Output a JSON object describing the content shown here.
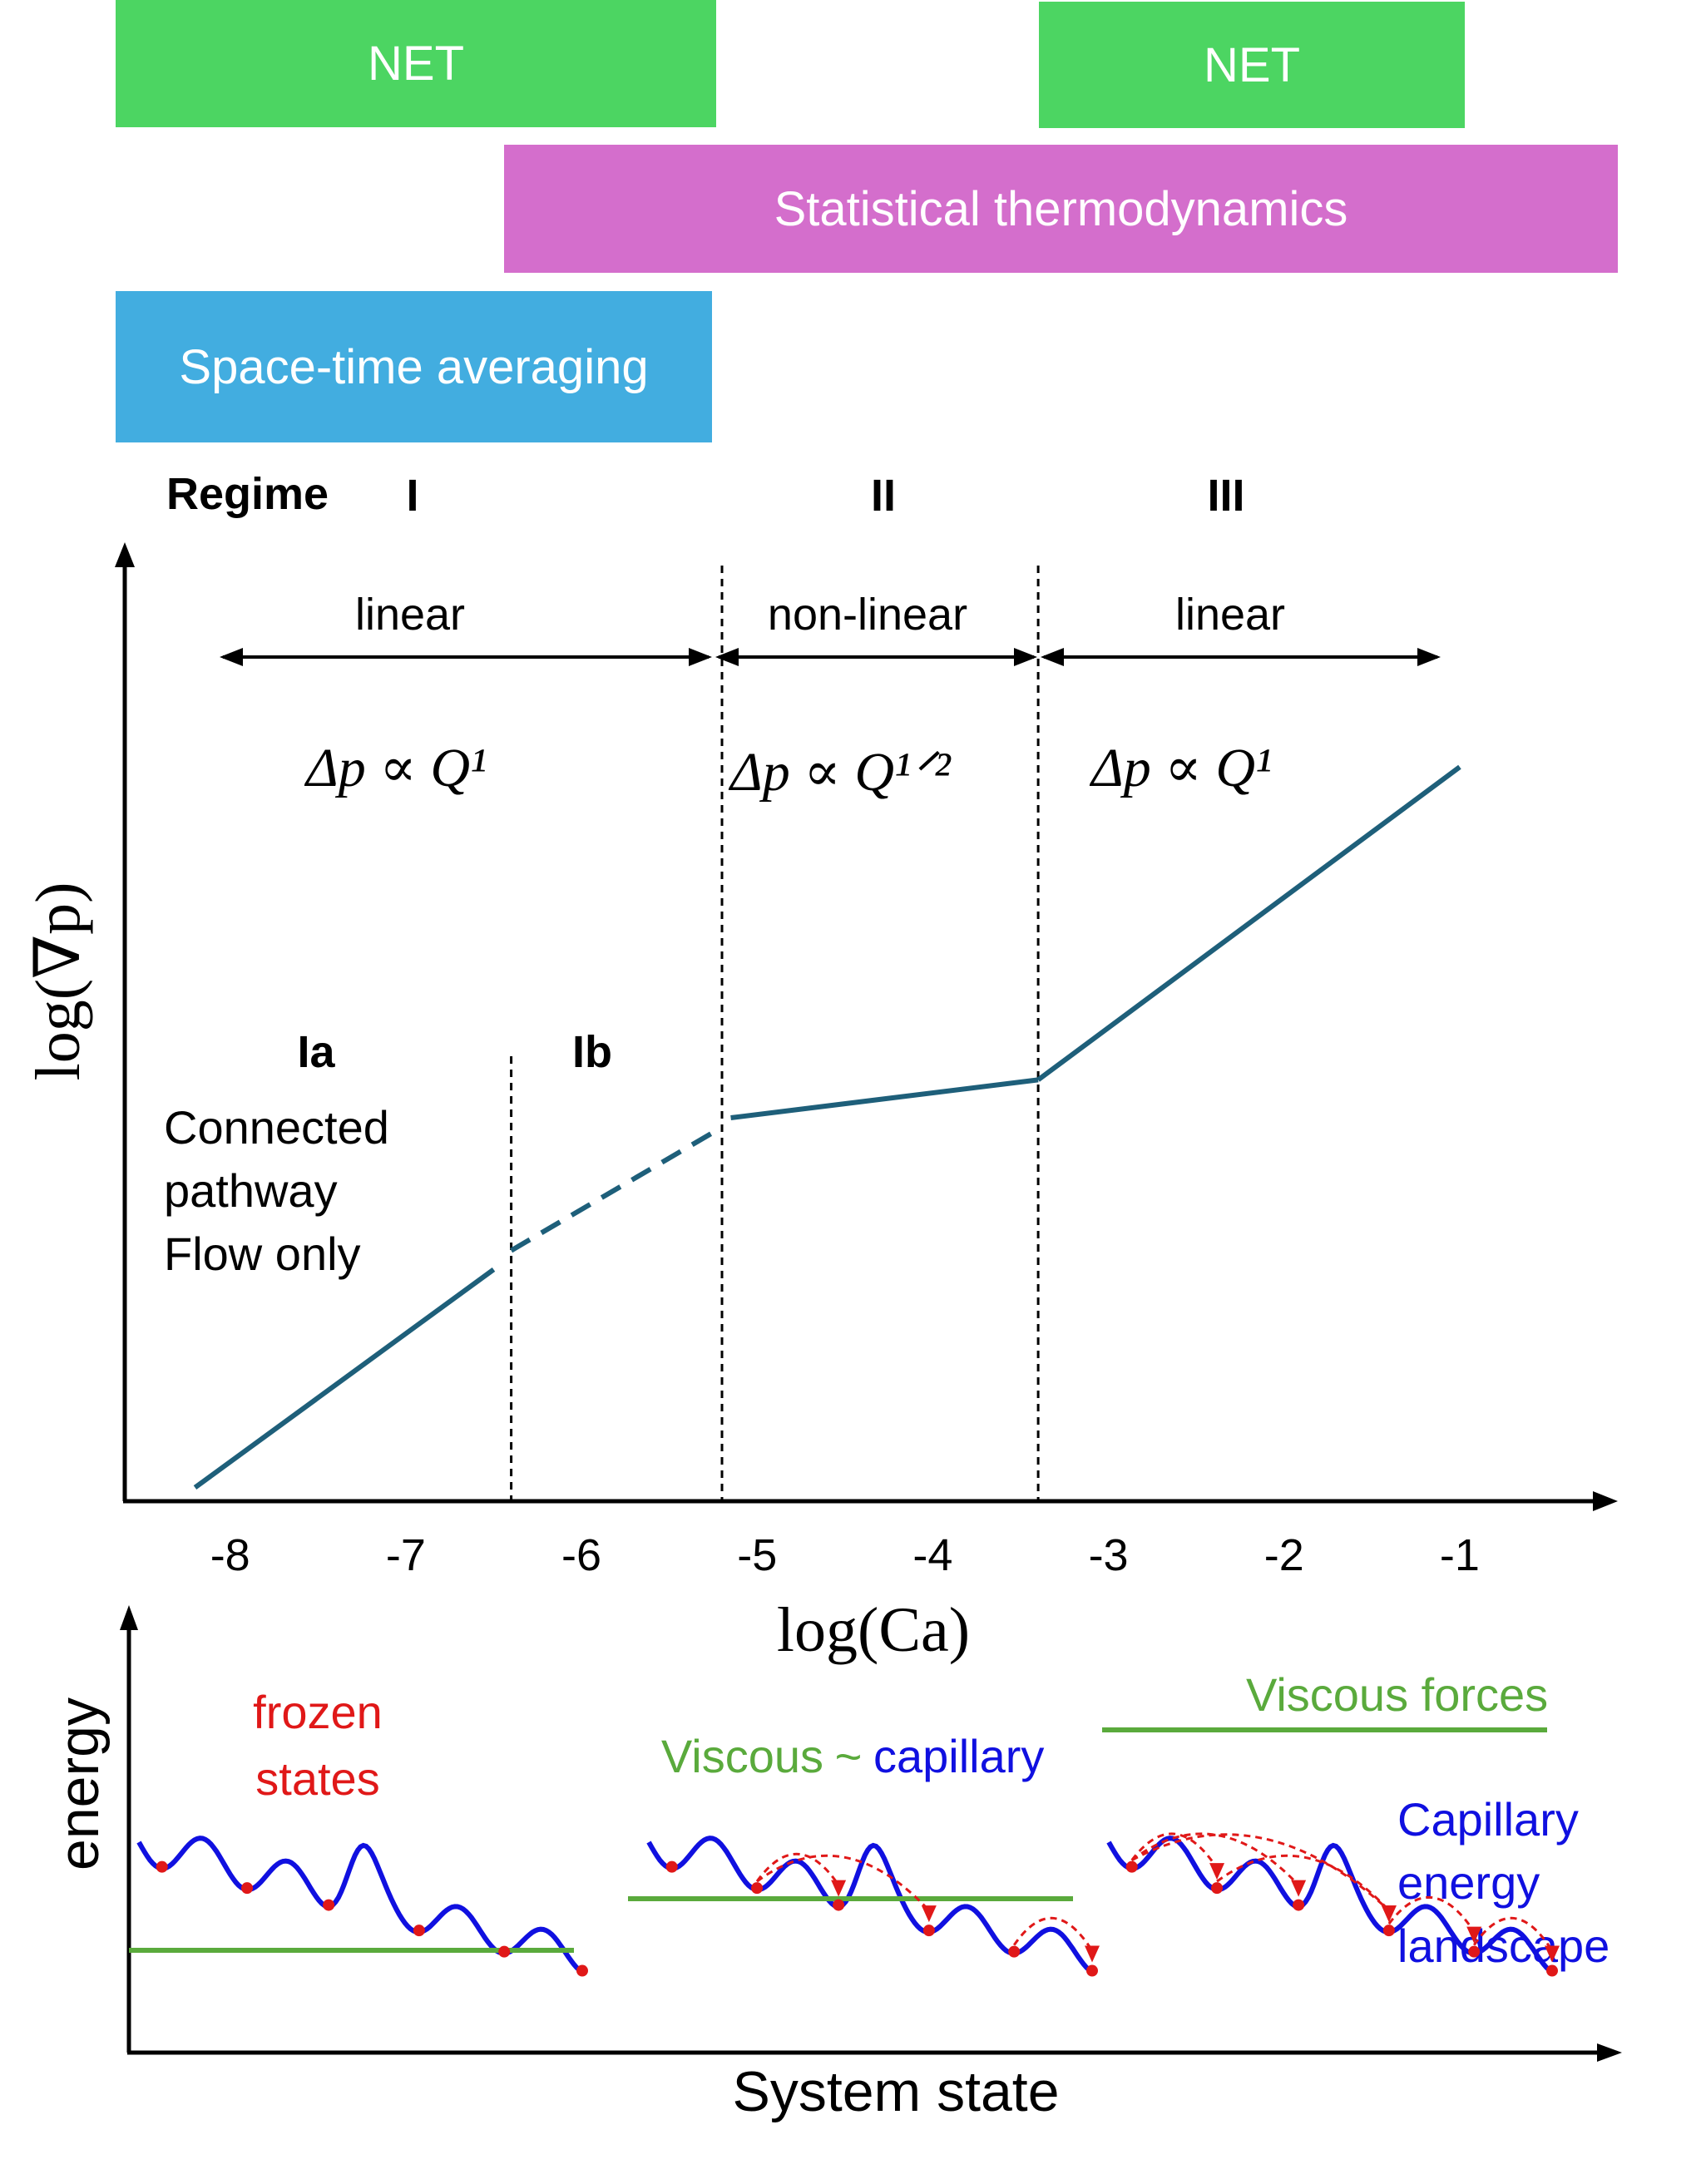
{
  "methods": {
    "net_left": {
      "label": "NET",
      "color": "#4cd562"
    },
    "net_right": {
      "label": "NET",
      "color": "#4cd562"
    },
    "stat_thermo": {
      "label": "Statistical thermodynamics",
      "color": "#d46ecc"
    },
    "space_time": {
      "label": "Space-time averaging",
      "color": "#42ade0"
    }
  },
  "regimes": {
    "header": "Regime",
    "r1": "I",
    "r2": "II",
    "r3": "III",
    "r1_type": "linear",
    "r2_type": "non-linear",
    "r3_type": "linear",
    "r1_law": "Δp ∝ Q¹",
    "r2_law": "Δp ∝ Q¹ᐟ²",
    "r3_law": "Δp ∝ Q¹",
    "sub_a": "Ia",
    "sub_b": "Ib",
    "ia_note": [
      "Connected",
      "pathway",
      "Flow only"
    ]
  },
  "chart_data": {
    "type": "line",
    "title": "",
    "xlabel": "log(Ca)",
    "ylabel": "log(∇p)",
    "x_ticks": [
      "-8",
      "-7",
      "-6",
      "-5",
      "-4",
      "-3",
      "-2",
      "-1"
    ],
    "xlim": [
      -8.6,
      -0.1
    ],
    "ylim": [
      0,
      10
    ],
    "regime_boundaries": [
      -6.4,
      -5.2,
      -3.4
    ],
    "series": [
      {
        "name": "Ia (solid)",
        "style": "solid",
        "x": [
          -8.2,
          -6.5
        ],
        "y": [
          0.1,
          2.4
        ]
      },
      {
        "name": "Ib (dashed)",
        "style": "dashed",
        "x": [
          -6.4,
          -5.2
        ],
        "y": [
          2.6,
          3.9
        ]
      },
      {
        "name": "II",
        "style": "solid",
        "x": [
          -5.15,
          -3.4
        ],
        "y": [
          4.0,
          4.4
        ]
      },
      {
        "name": "III",
        "style": "solid",
        "x": [
          -3.4,
          -1.0
        ],
        "y": [
          4.4,
          7.7
        ]
      }
    ],
    "line_color": "#1e5f7a"
  },
  "energy": {
    "ylabel": "energy",
    "xlabel": "System state",
    "frozen": [
      "frozen",
      "states"
    ],
    "mid_label_viscous": "Viscous",
    "mid_label_tilde": "~",
    "mid_label_capillary": "capillary",
    "viscous_forces": "Viscous forces",
    "landscape": [
      "Capillary",
      "energy",
      "landscape"
    ],
    "colors": {
      "landscape": "#1010e0",
      "viscous": "#5aaa3c",
      "frozen": "#e01818",
      "state": "#e01818"
    }
  }
}
